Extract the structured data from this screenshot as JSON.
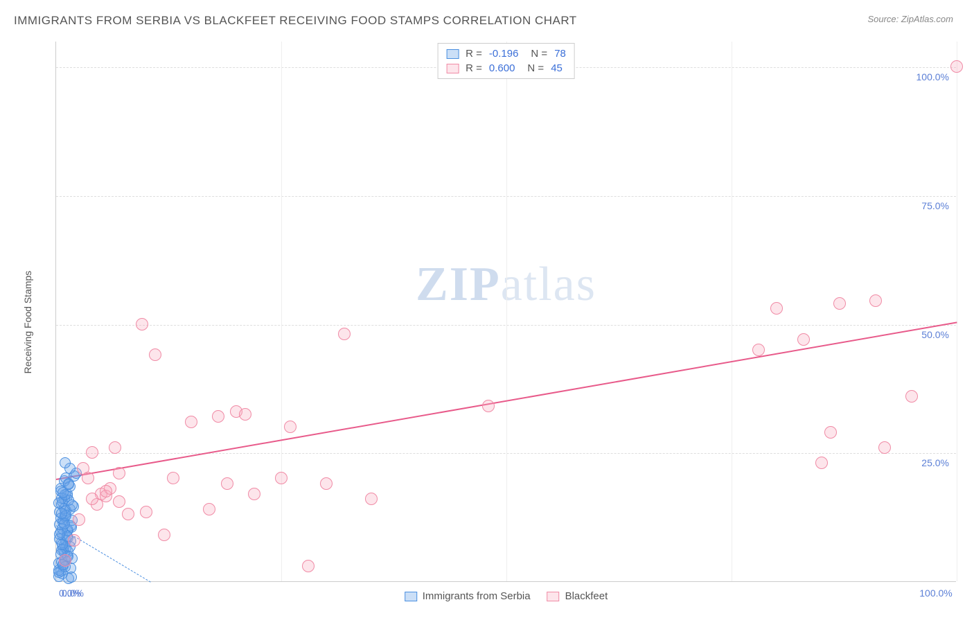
{
  "header": {
    "title": "IMMIGRANTS FROM SERBIA VS BLACKFEET RECEIVING FOOD STAMPS CORRELATION CHART",
    "source_label": "Source: ",
    "source_value": "ZipAtlas.com"
  },
  "chart": {
    "type": "scatter",
    "ylabel": "Receiving Food Stamps",
    "background_color": "#ffffff",
    "grid_color": "#dddddd",
    "vgrid_color": "#eeeeee",
    "xlim": [
      0,
      100
    ],
    "ylim": [
      0,
      105
    ],
    "xticks": [
      0,
      25,
      50,
      75,
      100
    ],
    "yticks": [
      0,
      25,
      50,
      75,
      100
    ],
    "xtick_labels": [
      "0.0%",
      "",
      "",
      "",
      "100.0%"
    ],
    "ytick_labels": [
      "0.0%",
      "25.0%",
      "50.0%",
      "75.0%",
      "100.0%"
    ],
    "tick_label_color": "#5b7fd6",
    "tick_fontsize": 14,
    "label_fontsize": 14,
    "watermark": "ZIPatlas",
    "series": [
      {
        "name": "Immigrants from Serbia",
        "marker_color": "#6ba4e8",
        "marker_fill": "rgba(107,164,232,0.35)",
        "marker_border": "#4a8fe0",
        "marker_size": 16,
        "trend": {
          "x1": 0,
          "y1": 11,
          "x2": 10.5,
          "y2": 0,
          "color": "#4a8fe0",
          "dashed": true
        },
        "R": "-0.196",
        "N": "78",
        "points": [
          [
            0.3,
            1
          ],
          [
            0.5,
            2
          ],
          [
            0.8,
            3
          ],
          [
            1.0,
            4
          ],
          [
            1.2,
            5
          ],
          [
            0.6,
            6
          ],
          [
            0.9,
            7
          ],
          [
            1.1,
            8
          ],
          [
            0.7,
            9
          ],
          [
            1.3,
            10
          ],
          [
            0.4,
            11
          ],
          [
            0.8,
            12
          ],
          [
            1.0,
            13
          ],
          [
            1.5,
            14
          ],
          [
            0.6,
            15
          ],
          [
            0.9,
            16
          ],
          [
            1.2,
            17
          ],
          [
            0.5,
            18
          ],
          [
            1.4,
            19
          ],
          [
            0.7,
            1.5
          ],
          [
            1.6,
            2.5
          ],
          [
            0.3,
            3.5
          ],
          [
            1.8,
            4.5
          ],
          [
            0.9,
            5.5
          ],
          [
            1.1,
            6.5
          ],
          [
            0.6,
            7.5
          ],
          [
            1.3,
            8.5
          ],
          [
            0.5,
            9.5
          ],
          [
            1.7,
            10.5
          ],
          [
            0.8,
            11.5
          ],
          [
            1.0,
            12.5
          ],
          [
            1.4,
            0.5
          ],
          [
            0.4,
            13.5
          ],
          [
            1.9,
            14.5
          ],
          [
            0.7,
            15.5
          ],
          [
            1.2,
            16.5
          ],
          [
            0.5,
            17.5
          ],
          [
            1.5,
            18.5
          ],
          [
            0.9,
            19.5
          ],
          [
            1.1,
            20
          ],
          [
            0.3,
            2.2
          ],
          [
            0.6,
            3.8
          ],
          [
            1.0,
            4.2
          ],
          [
            1.3,
            5.8
          ],
          [
            0.8,
            6.2
          ],
          [
            1.6,
            7.8
          ],
          [
            0.4,
            8.2
          ],
          [
            1.2,
            9.8
          ],
          [
            0.7,
            10.2
          ],
          [
            1.8,
            11.8
          ],
          [
            0.5,
            12.2
          ],
          [
            1.1,
            13.8
          ],
          [
            0.9,
            14.2
          ],
          [
            1.4,
            15.8
          ],
          [
            0.6,
            16.2
          ],
          [
            1.7,
            0.8
          ],
          [
            0.3,
            1.8
          ],
          [
            1.0,
            2.8
          ],
          [
            0.8,
            3.2
          ],
          [
            1.3,
            4.8
          ],
          [
            0.5,
            5.2
          ],
          [
            1.5,
            6.8
          ],
          [
            0.7,
            7.2
          ],
          [
            1.2,
            8.8
          ],
          [
            0.4,
            9.2
          ],
          [
            1.6,
            10.8
          ],
          [
            0.9,
            11.2
          ],
          [
            1.1,
            12.8
          ],
          [
            0.6,
            13.2
          ],
          [
            1.8,
            14.8
          ],
          [
            0.3,
            15.2
          ],
          [
            1.0,
            16.8
          ],
          [
            0.8,
            17.2
          ],
          [
            1.4,
            18.8
          ],
          [
            2.0,
            20.5
          ],
          [
            2.2,
            21
          ],
          [
            1.5,
            22
          ],
          [
            1.0,
            23
          ]
        ]
      },
      {
        "name": "Blackfeet",
        "marker_color": "#f8a8bc",
        "marker_fill": "rgba(248,168,188,0.30)",
        "marker_border": "#f08aa5",
        "marker_size": 18,
        "trend": {
          "x1": 0,
          "y1": 20,
          "x2": 100,
          "y2": 50.5,
          "color": "#e85a8a",
          "dashed": false
        },
        "R": "0.600",
        "N": "45",
        "points": [
          [
            1,
            4
          ],
          [
            2,
            8
          ],
          [
            2.5,
            12
          ],
          [
            3,
            22
          ],
          [
            3.5,
            20
          ],
          [
            4,
            25
          ],
          [
            4.5,
            15
          ],
          [
            5,
            17
          ],
          [
            5.5,
            16.5
          ],
          [
            6,
            18
          ],
          [
            6.5,
            26
          ],
          [
            7,
            21
          ],
          [
            8,
            13
          ],
          [
            9.5,
            50
          ],
          [
            11,
            44
          ],
          [
            12,
            9
          ],
          [
            13,
            20
          ],
          [
            15,
            31
          ],
          [
            17,
            14
          ],
          [
            18,
            32
          ],
          [
            19,
            19
          ],
          [
            20,
            33
          ],
          [
            21,
            32.5
          ],
          [
            22,
            17
          ],
          [
            25,
            20
          ],
          [
            26,
            30
          ],
          [
            28,
            3
          ],
          [
            30,
            19
          ],
          [
            32,
            48
          ],
          [
            35,
            16
          ],
          [
            48,
            34
          ],
          [
            78,
            45
          ],
          [
            80,
            53
          ],
          [
            83,
            47
          ],
          [
            85,
            23
          ],
          [
            86,
            29
          ],
          [
            87,
            54
          ],
          [
            91,
            54.5
          ],
          [
            92,
            26
          ],
          [
            95,
            36
          ],
          [
            100,
            100
          ],
          [
            4,
            16
          ],
          [
            5.5,
            17.5
          ],
          [
            7,
            15.5
          ],
          [
            10,
            13.5
          ]
        ]
      }
    ],
    "stats_box": {
      "R_label": "R =",
      "N_label": "N ="
    },
    "legend": {
      "items": [
        "Immigrants from Serbia",
        "Blackfeet"
      ]
    }
  }
}
